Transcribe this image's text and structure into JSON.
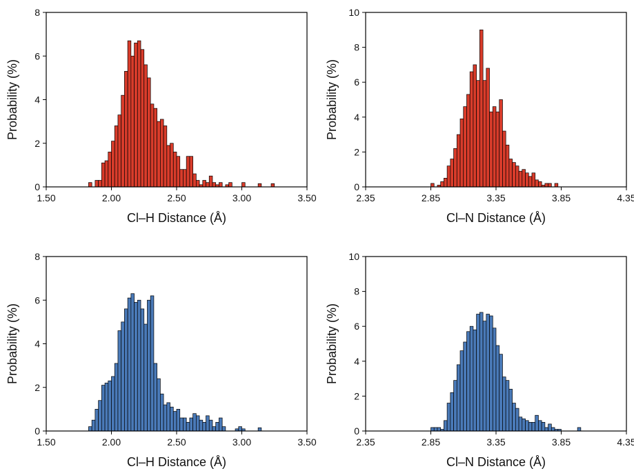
{
  "chart_data": [
    {
      "type": "bar",
      "color": "#d93c2b",
      "xlabel": "Cl–H Distance (Å)",
      "ylabel": "Probability (%)",
      "xlim": [
        1.5,
        3.5
      ],
      "ylim": [
        0,
        8
      ],
      "xticks": [
        "1.50",
        "2.00",
        "2.50",
        "3.00",
        "3.50"
      ],
      "yticks": [
        "0",
        "2",
        "4",
        "6",
        "8"
      ],
      "bin_width": 0.025,
      "bins_start": [
        1.825,
        1.85,
        1.875,
        1.9,
        1.925,
        1.95,
        1.975,
        2.0,
        2.025,
        2.05,
        2.075,
        2.1,
        2.125,
        2.15,
        2.175,
        2.2,
        2.225,
        2.25,
        2.275,
        2.3,
        2.325,
        2.35,
        2.375,
        2.4,
        2.425,
        2.45,
        2.475,
        2.5,
        2.525,
        2.55,
        2.575,
        2.6,
        2.625,
        2.65,
        2.675,
        2.7,
        2.725,
        2.75,
        2.775,
        2.8,
        2.825,
        2.85,
        2.875,
        2.9,
        2.925,
        2.95,
        2.975,
        3.0,
        3.025,
        3.05,
        3.075,
        3.1,
        3.125,
        3.15,
        3.175,
        3.2,
        3.225
      ],
      "values": [
        0.2,
        0.0,
        0.3,
        0.3,
        1.1,
        1.2,
        1.6,
        2.1,
        2.8,
        3.3,
        4.2,
        5.3,
        6.7,
        6.0,
        6.6,
        6.7,
        6.3,
        5.6,
        5.0,
        3.8,
        3.6,
        3.0,
        3.1,
        2.8,
        1.9,
        2.0,
        1.6,
        1.4,
        0.8,
        0.8,
        1.4,
        1.4,
        0.6,
        0.3,
        0.1,
        0.3,
        0.2,
        0.5,
        0.2,
        0.1,
        0.2,
        0.0,
        0.1,
        0.2,
        0.0,
        0.0,
        0.0,
        0.2,
        0.0,
        0.0,
        0.0,
        0.0,
        0.15,
        0.0,
        0.0,
        0.0,
        0.15
      ]
    },
    {
      "type": "bar",
      "color": "#d93c2b",
      "xlabel": "Cl–N Distance (Å)",
      "ylabel": "Probability (%)",
      "xlim": [
        2.35,
        4.35
      ],
      "ylim": [
        0,
        10
      ],
      "xticks": [
        "2.35",
        "2.85",
        "3.35",
        "3.85",
        "4.35"
      ],
      "yticks": [
        "0",
        "2",
        "4",
        "6",
        "8",
        "10"
      ],
      "bin_width": 0.025,
      "bins_start": [
        2.85,
        2.875,
        2.9,
        2.925,
        2.95,
        2.975,
        3.0,
        3.025,
        3.05,
        3.075,
        3.1,
        3.125,
        3.15,
        3.175,
        3.2,
        3.225,
        3.25,
        3.275,
        3.3,
        3.325,
        3.35,
        3.375,
        3.4,
        3.425,
        3.45,
        3.475,
        3.5,
        3.525,
        3.55,
        3.575,
        3.6,
        3.625,
        3.65,
        3.675,
        3.7,
        3.725,
        3.75,
        3.775,
        3.8
      ],
      "values": [
        0.2,
        0.0,
        0.1,
        0.3,
        0.5,
        1.2,
        1.6,
        2.2,
        3.0,
        3.9,
        4.6,
        5.3,
        6.6,
        7.0,
        6.1,
        9.0,
        6.1,
        6.8,
        4.3,
        4.6,
        4.3,
        5.0,
        3.2,
        2.4,
        1.6,
        1.4,
        1.2,
        0.9,
        1.0,
        0.8,
        0.6,
        0.8,
        0.4,
        0.3,
        0.1,
        0.2,
        0.2,
        0.0,
        0.2
      ]
    },
    {
      "type": "bar",
      "color": "#4a7ab8",
      "xlabel": "Cl–H Distance (Å)",
      "ylabel": "Probability (%)",
      "xlim": [
        1.5,
        3.5
      ],
      "ylim": [
        0,
        8
      ],
      "xticks": [
        "1.50",
        "2.00",
        "2.50",
        "3.00",
        "3.50"
      ],
      "yticks": [
        "0",
        "2",
        "4",
        "6",
        "8"
      ],
      "bin_width": 0.025,
      "bins_start": [
        1.825,
        1.85,
        1.875,
        1.9,
        1.925,
        1.95,
        1.975,
        2.0,
        2.025,
        2.05,
        2.075,
        2.1,
        2.125,
        2.15,
        2.175,
        2.2,
        2.225,
        2.25,
        2.275,
        2.3,
        2.325,
        2.35,
        2.375,
        2.4,
        2.425,
        2.45,
        2.475,
        2.5,
        2.525,
        2.55,
        2.575,
        2.6,
        2.625,
        2.65,
        2.675,
        2.7,
        2.725,
        2.75,
        2.775,
        2.8,
        2.825,
        2.85,
        2.875,
        2.9,
        2.925,
        2.95,
        2.975,
        3.0,
        3.025,
        3.05,
        3.075,
        3.1,
        3.125
      ],
      "values": [
        0.2,
        0.5,
        1.0,
        1.4,
        2.1,
        2.2,
        2.3,
        2.5,
        3.1,
        4.6,
        5.0,
        5.6,
        6.1,
        6.3,
        5.9,
        6.0,
        5.6,
        4.9,
        6.0,
        6.2,
        3.1,
        2.4,
        1.7,
        1.2,
        1.3,
        1.1,
        0.9,
        1.0,
        0.6,
        0.6,
        0.4,
        0.6,
        0.8,
        0.7,
        0.5,
        0.4,
        0.7,
        0.5,
        0.2,
        0.4,
        0.6,
        0.2,
        0.0,
        0.0,
        0.0,
        0.1,
        0.2,
        0.1,
        0.0,
        0.0,
        0.0,
        0.0,
        0.15
      ]
    },
    {
      "type": "bar",
      "color": "#4a7ab8",
      "xlabel": "Cl–N Distance (Å)",
      "ylabel": "Probability (%)",
      "xlim": [
        2.35,
        4.35
      ],
      "ylim": [
        0,
        10
      ],
      "xticks": [
        "2.35",
        "2.85",
        "3.35",
        "3.85",
        "4.35"
      ],
      "yticks": [
        "0",
        "2",
        "4",
        "6",
        "8",
        "10"
      ],
      "bin_width": 0.025,
      "bins_start": [
        2.85,
        2.875,
        2.9,
        2.925,
        2.95,
        2.975,
        3.0,
        3.025,
        3.05,
        3.075,
        3.1,
        3.125,
        3.15,
        3.175,
        3.2,
        3.225,
        3.25,
        3.275,
        3.3,
        3.325,
        3.35,
        3.375,
        3.4,
        3.425,
        3.45,
        3.475,
        3.5,
        3.525,
        3.55,
        3.575,
        3.6,
        3.625,
        3.65,
        3.675,
        3.7,
        3.725,
        3.75,
        3.775,
        3.8,
        3.825,
        3.85,
        3.875,
        3.9,
        3.925,
        3.95,
        3.975
      ],
      "values": [
        0.2,
        0.2,
        0.2,
        0.1,
        0.6,
        1.6,
        2.2,
        2.9,
        3.8,
        4.6,
        5.1,
        5.7,
        6.0,
        5.8,
        6.7,
        6.8,
        6.3,
        6.7,
        6.6,
        5.9,
        4.9,
        4.4,
        3.1,
        2.9,
        2.4,
        1.6,
        1.3,
        0.8,
        0.7,
        0.6,
        0.5,
        0.5,
        0.9,
        0.6,
        0.5,
        0.2,
        0.4,
        0.2,
        0.1,
        0.1,
        0.0,
        0.0,
        0.0,
        0.0,
        0.0,
        0.2
      ]
    }
  ]
}
